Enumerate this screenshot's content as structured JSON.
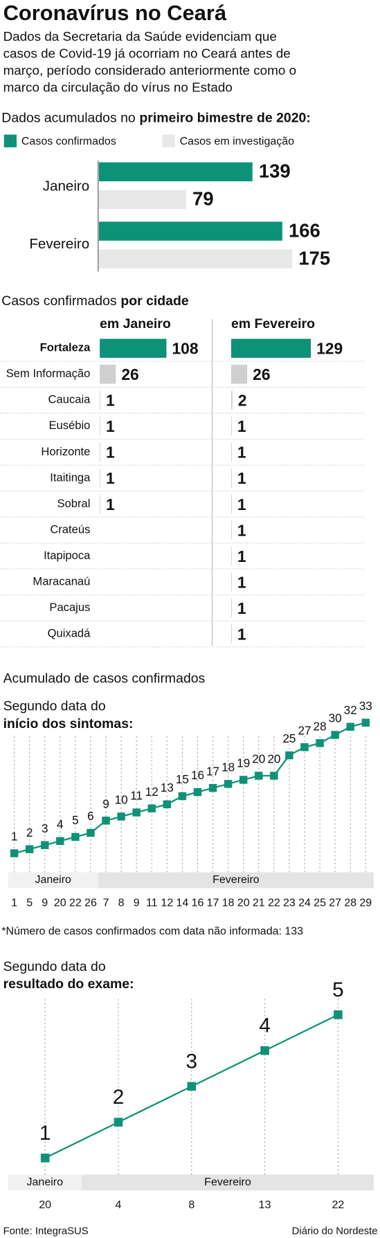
{
  "title": "Coronavírus no Ceará",
  "subtitle": [
    "Dados da Secretaria da Saúde evidenciam que",
    "casos de Covid-19 já ocorriam no Ceará antes de",
    "março, período considerado anteriormente como o",
    "marco da circulação do vírus no Estado"
  ],
  "chart_data": [
    {
      "type": "hbar",
      "title": {
        "plain": "Dados acumulados no",
        "bold": "primeiro bimestre de 2020:"
      },
      "categories": [
        "Janeiro",
        "Fevereiro"
      ],
      "series": [
        {
          "name": "Casos confirmados",
          "color": "#0e9277",
          "values": [
            139,
            166
          ]
        },
        {
          "name": "Casos em investigação",
          "color": "#e8e8e8",
          "values": [
            79,
            175
          ]
        }
      ]
    },
    {
      "type": "city",
      "title": {
        "plain": "Casos confirmados",
        "bold": "por cidade"
      },
      "categories": [
        "Fortaleza",
        "Sem Informação",
        "Caucaia",
        "Eusébio",
        "Horizonte",
        "Itaitinga",
        "Sobral",
        "Crateús",
        "Itapipoca",
        "Maracanaú",
        "Pacajus",
        "Quixadá"
      ],
      "bar_colors": [
        "#0e9277",
        "#cfcfcf",
        "#cfcfcf",
        "#cfcfcf",
        "#cfcfcf",
        "#cfcfcf",
        "#cfcfcf",
        "#cfcfcf",
        "#cfcfcf",
        "#cfcfcf",
        "#cfcfcf",
        "#cfcfcf"
      ],
      "series": [
        {
          "name": "em Janeiro",
          "values": [
            108,
            26,
            1,
            1,
            1,
            1,
            1,
            null,
            null,
            null,
            null,
            null
          ]
        },
        {
          "name": "em Fevereiro",
          "values": [
            129,
            26,
            2,
            1,
            1,
            1,
            1,
            1,
            1,
            1,
            1,
            1
          ]
        }
      ]
    },
    {
      "type": "line",
      "supertitle": "Acumulado de casos confirmados",
      "title": {
        "plain": "Segundo data do",
        "bold": "início dos sintomas:"
      },
      "categories": [
        "1",
        "5",
        "9",
        "20",
        "22",
        "26",
        "7",
        "8",
        "9",
        "11",
        "12",
        "14",
        "16",
        "17",
        "18",
        "20",
        "21",
        "22",
        "23",
        "24",
        "25",
        "27",
        "28",
        "29"
      ],
      "months": [
        "Janeiro",
        "Fevereiro"
      ],
      "color": "#0e9277",
      "grid": true,
      "values": [
        1,
        2,
        3,
        4,
        5,
        6,
        9,
        10,
        11,
        12,
        13,
        15,
        16,
        17,
        18,
        19,
        20,
        20,
        25,
        27,
        28,
        30,
        32,
        33
      ],
      "note": "*Número de casos confirmados com data não informada: 133"
    },
    {
      "type": "line",
      "title": {
        "plain": "Segundo data do",
        "bold": "resultado do exame:"
      },
      "categories": [
        "20",
        "4",
        "8",
        "13",
        "22"
      ],
      "months": [
        "Janeiro",
        "Fevereiro"
      ],
      "color": "#0e9277",
      "grid": true,
      "values": [
        1,
        2,
        3,
        4,
        5
      ]
    }
  ],
  "footer": {
    "source": "Fonte: IntegraSUS",
    "credit": "Diário do Nordeste"
  }
}
